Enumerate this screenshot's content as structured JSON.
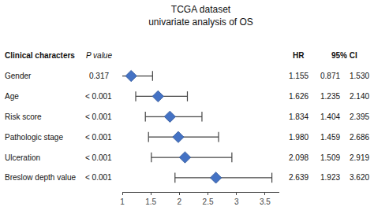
{
  "chart_data": {
    "type": "forest",
    "title": "TCGA dataset",
    "subtitle": "univariate analysis of OS",
    "columns": [
      "Clinical characters",
      "P value",
      "HR",
      "95% CI"
    ],
    "categories": [
      "Gender",
      "Age",
      "Risk score",
      "Pathologic stage",
      "Ulceration",
      "Breslow depth value"
    ],
    "p_values": [
      "0.317",
      "< 0.001",
      "< 0.001",
      "< 0.001",
      "< 0.001",
      "< 0.001"
    ],
    "values": [
      1.155,
      1.626,
      1.834,
      1.98,
      2.098,
      2.639
    ],
    "value_labels": [
      "1.155",
      "1.626",
      "1.834",
      "1.980",
      "2.098",
      "2.639"
    ],
    "ci_low": [
      0.871,
      1.235,
      1.404,
      1.459,
      1.509,
      1.923
    ],
    "ci_low_labels": [
      "0.871",
      "1.235",
      "1.404",
      "1.459",
      "1.509",
      "1.923"
    ],
    "ci_high": [
      1.53,
      2.14,
      2.395,
      2.686,
      2.919,
      3.62
    ],
    "ci_high_labels": [
      "1.530",
      "2.140",
      "2.395",
      "2.686",
      "2.919",
      "3.620"
    ],
    "xlim": [
      1.0,
      3.75
    ],
    "xticks": [
      1,
      1.5,
      2,
      2.5,
      3,
      3.5
    ],
    "color": "#4472C4",
    "marker": "diamond",
    "grid": false,
    "tick_labels": "x"
  }
}
